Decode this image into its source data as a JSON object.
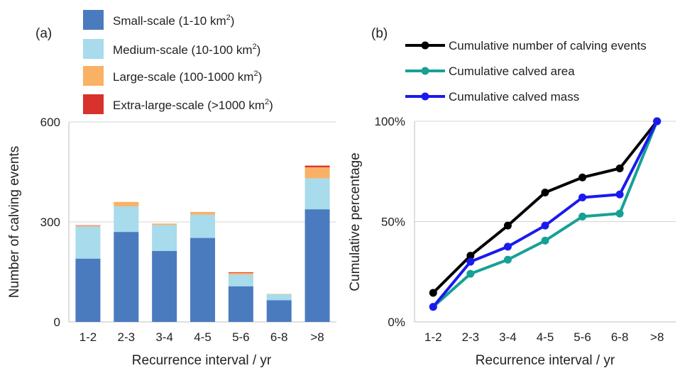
{
  "chart_data": [
    {
      "panel_label": "(a)",
      "type": "bar",
      "stacked": true,
      "categories": [
        "1-2",
        "2-3",
        "3-4",
        "4-5",
        "5-6",
        "6-8",
        ">8"
      ],
      "xlabel": "Recurrence interval / yr",
      "ylabel": "Number of calving events",
      "ylim": [
        0,
        600
      ],
      "yticks": [
        0,
        300,
        600
      ],
      "grid": "horizontal",
      "legend_position": "top, above plot",
      "series": [
        {
          "name": "Small-scale (1-10 km",
          "sup": "2",
          "close": ")",
          "color": "#4a7bbf",
          "values": [
            190,
            270,
            213,
            252,
            107,
            65,
            338
          ]
        },
        {
          "name": "Medium-scale (10-100 km",
          "sup": "2",
          "close": ")",
          "color": "#a8dbeb",
          "values": [
            96,
            77,
            78,
            70,
            35,
            18,
            93
          ]
        },
        {
          "name": "Large-scale (100-1000 km",
          "sup": "2",
          "close": ")",
          "color": "#f9b165",
          "values": [
            3,
            13,
            4,
            8,
            5,
            1,
            33
          ]
        },
        {
          "name": "Extra-large-scale (>1000 km",
          "sup": "2",
          "close": ")",
          "color": "#d9312c",
          "values": [
            1,
            0,
            0,
            0,
            2,
            0,
            5
          ]
        }
      ]
    },
    {
      "panel_label": "(b)",
      "type": "line",
      "categories": [
        "1-2",
        "2-3",
        "3-4",
        "4-5",
        "5-6",
        "6-8",
        ">8"
      ],
      "xlabel": "Recurrence interval / yr",
      "ylabel": "Cumulative percentage",
      "ylim": [
        0,
        100
      ],
      "yticks": [
        0,
        50,
        100
      ],
      "ytick_labels": [
        "0%",
        "50%",
        "100%"
      ],
      "grid": "horizontal",
      "legend_position": "top, above plot",
      "series": [
        {
          "name": "Cumulative number of calving events",
          "color": "#000000",
          "values": [
            14.5,
            33,
            48,
            64.5,
            72,
            76.5,
            100
          ]
        },
        {
          "name": "Cumulative calved area",
          "color": "#17a095",
          "values": [
            7.5,
            24,
            31,
            40.5,
            52.5,
            54,
            100
          ]
        },
        {
          "name": "Cumulative calved mass",
          "color": "#1a1aef",
          "values": [
            7.5,
            30,
            37.5,
            48,
            62,
            63.5,
            100
          ]
        }
      ]
    }
  ]
}
